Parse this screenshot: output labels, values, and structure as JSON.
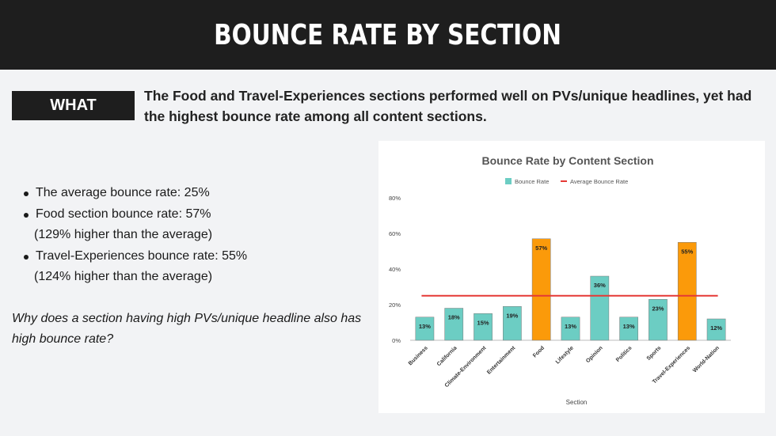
{
  "header": {
    "title": "BOUNCE RATE BY SECTION"
  },
  "what": {
    "badge": "WHAT",
    "text": "The Food and Travel-Experiences sections performed well on PVs/unique headlines, yet had the highest bounce rate among all content sections."
  },
  "bullets": [
    {
      "text": "The average bounce rate: 25%",
      "sub": ""
    },
    {
      "text": "Food section bounce rate: 57%",
      "sub": "(129% higher than the average)"
    },
    {
      "text": "Travel-Experiences bounce rate: 55%",
      "sub": "(124% higher than the average)"
    }
  ],
  "question": "Why does a section having high PVs/unique headline also has high bounce rate?",
  "chart_data": {
    "type": "bar",
    "title": "Bounce Rate by Content Section",
    "xlabel": "Section",
    "ylabel": "",
    "ylim": [
      0,
      80
    ],
    "yticks": [
      "0%",
      "20%",
      "40%",
      "60%",
      "80%"
    ],
    "grid": false,
    "legend_placement": "top-center",
    "categories": [
      "Business",
      "California",
      "Climate-Environment",
      "Entertainment",
      "Food",
      "Lifestyle",
      "Opinion",
      "Politics",
      "Sports",
      "Travel-Experiences",
      "World-Nation"
    ],
    "series": [
      {
        "name": "Bounce Rate",
        "values": [
          13,
          18,
          15,
          19,
          57,
          13,
          36,
          13,
          23,
          55,
          12
        ]
      }
    ],
    "data_labels": [
      "13%",
      "18%",
      "15%",
      "19%",
      "57%",
      "13%",
      "36%",
      "13%",
      "23%",
      "55%",
      "12%"
    ],
    "reference_line": {
      "name": "Average Bounce Rate",
      "value": 25
    },
    "highlight_categories": [
      "Food",
      "Travel-Experiences"
    ],
    "colors": {
      "bar": "#6ccdc3",
      "highlight": "#fb9a0a",
      "average_line": "#e53935",
      "bar_stroke": "#7a7a7a"
    }
  }
}
